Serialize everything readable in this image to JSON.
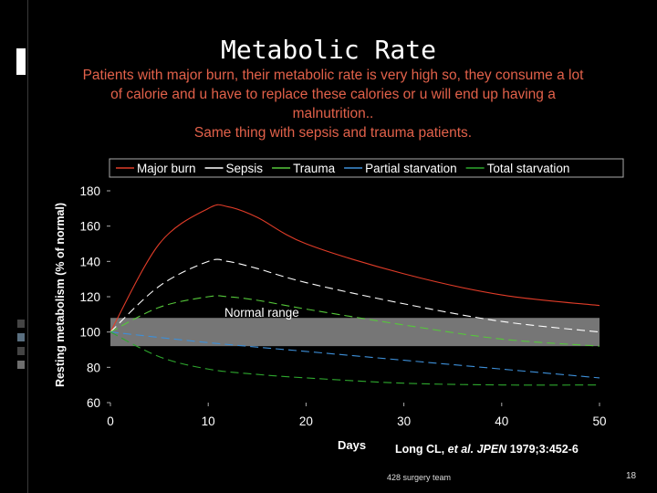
{
  "slide": {
    "title": "Metabolic Rate",
    "subtitle_lines": [
      "Patients with major burn, their metabolic rate is very high so, they consume a lot",
      "of calorie and u have to replace these calories or u will end up having a",
      "malnutrition..",
      "Same thing with sepsis and trauma patients."
    ],
    "footer": "428 surgery team",
    "page_number": "18"
  },
  "chart_data": {
    "type": "line",
    "ylabel": "Resting metabolism (% of normal)",
    "xlabel": "Days",
    "citation": {
      "authors": "Long CL, ",
      "et_al": "et al.",
      "journal": " JPEN",
      "rest": " 1979;3:452-6"
    },
    "annotation": "Normal range",
    "normal_range": [
      92,
      108
    ],
    "xlim": [
      0,
      50
    ],
    "ylim": [
      60,
      180
    ],
    "xticks": [
      "0",
      "10",
      "20",
      "30",
      "40",
      "50"
    ],
    "yticks": [
      "60",
      "80",
      "100",
      "120",
      "140",
      "160",
      "180"
    ],
    "legend_position": "top",
    "series": [
      {
        "name": "Major burn",
        "color": "#e03c28",
        "x": [
          0,
          5,
          10,
          12,
          15,
          20,
          30,
          40,
          50
        ],
        "y": [
          100,
          150,
          170,
          171,
          165,
          150,
          133,
          121,
          115
        ]
      },
      {
        "name": "Sepsis",
        "color": "#ffffff",
        "x": [
          0,
          5,
          10,
          12,
          15,
          20,
          30,
          40,
          50
        ],
        "y": [
          100,
          126,
          140,
          140,
          136,
          128,
          116,
          106,
          100
        ]
      },
      {
        "name": "Trauma",
        "color": "#55c83a",
        "x": [
          0,
          5,
          10,
          12,
          15,
          20,
          30,
          40,
          50
        ],
        "y": [
          100,
          114,
          120,
          120,
          118,
          113,
          104,
          96,
          92
        ]
      },
      {
        "name": "Partial starvation",
        "color": "#3d8fd8",
        "x": [
          0,
          10,
          20,
          30,
          40,
          50
        ],
        "y": [
          100,
          94,
          89,
          84,
          79,
          74
        ]
      },
      {
        "name": "Total starvation",
        "color": "#2ea82e",
        "x": [
          0,
          5,
          10,
          15,
          20,
          30,
          40,
          50
        ],
        "y": [
          100,
          86,
          79,
          76,
          74,
          71,
          70,
          70
        ]
      }
    ]
  }
}
